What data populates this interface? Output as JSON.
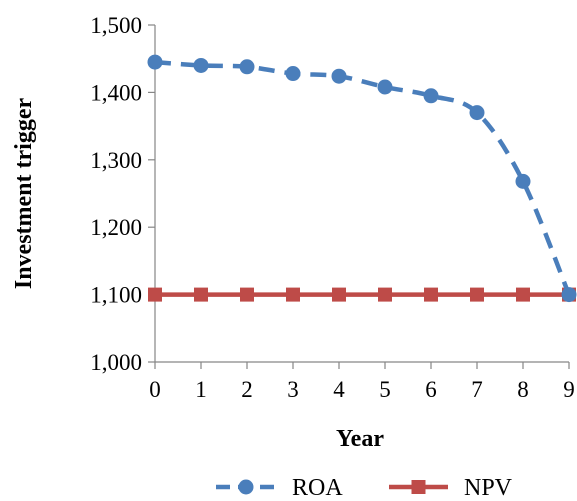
{
  "chart_data": {
    "type": "line",
    "x": [
      0,
      1,
      2,
      3,
      4,
      5,
      6,
      7,
      8,
      9
    ],
    "series": [
      {
        "name": "ROA",
        "values": [
          1445,
          1440,
          1438,
          1428,
          1424,
          1408,
          1395,
          1370,
          1268,
          1100
        ],
        "color": "#4a7ebb",
        "line_style": "dashed",
        "marker": "circle"
      },
      {
        "name": "NPV",
        "values": [
          1100,
          1100,
          1100,
          1100,
          1100,
          1100,
          1100,
          1100,
          1100,
          1100
        ],
        "color": "#be4b48",
        "line_style": "solid",
        "marker": "square"
      }
    ],
    "xlabel": "Year",
    "ylabel": "Investment trigger",
    "xlim": [
      0,
      9
    ],
    "ylim": [
      1000,
      1500
    ],
    "x_ticks": [
      "0",
      "1",
      "2",
      "3",
      "4",
      "5",
      "6",
      "7",
      "8",
      "9"
    ],
    "y_ticks": [
      "1,000",
      "1,100",
      "1,200",
      "1,300",
      "1,400",
      "1,500"
    ],
    "y_tick_values": [
      1000,
      1100,
      1200,
      1300,
      1400,
      1500
    ],
    "grid": false,
    "legend_position": "bottom"
  }
}
